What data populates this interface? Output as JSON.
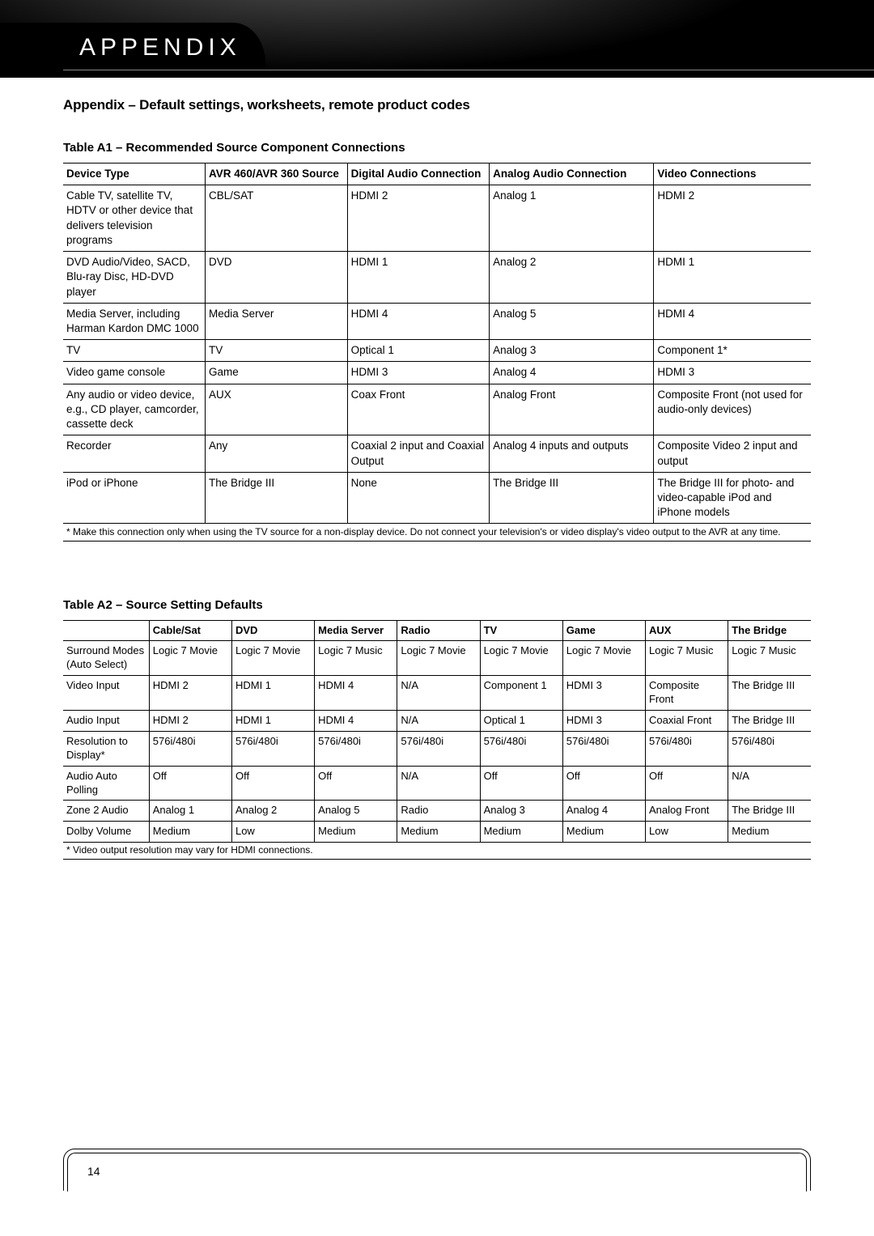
{
  "header": {
    "label": "APPENDIX"
  },
  "section_title": "Appendix – Default settings, worksheets, remote product codes",
  "tableA1": {
    "caption": "Table A1 – Recommended Source Component Connections",
    "columns": [
      "Device Type",
      "AVR 460/AVR 360 Source",
      "Digital Audio Connection",
      "Analog Audio Connection",
      "Video Connections"
    ],
    "rows": [
      [
        "Cable TV, satellite TV, HDTV or other device that delivers television programs",
        "CBL/SAT",
        "HDMI 2",
        "Analog 1",
        "HDMI 2"
      ],
      [
        "DVD Audio/Video, SACD, Blu-ray Disc, HD-DVD player",
        "DVD",
        "HDMI 1",
        "Analog 2",
        "HDMI 1"
      ],
      [
        "Media Server, including Harman Kardon DMC 1000",
        "Media Server",
        "HDMI 4",
        "Analog 5",
        "HDMI 4"
      ],
      [
        "TV",
        "TV",
        "Optical 1",
        "Analog 3",
        "Component 1*"
      ],
      [
        "Video game console",
        "Game",
        "HDMI 3",
        "Analog 4",
        "HDMI 3"
      ],
      [
        "Any audio or video device, e.g., CD player, camcorder, cassette deck",
        "AUX",
        "Coax Front",
        "Analog Front",
        "Composite Front (not used for audio-only devices)"
      ],
      [
        "Recorder",
        "Any",
        "Coaxial 2 input and Coaxial Output",
        "Analog 4 inputs and outputs",
        "Composite Video 2 input and output"
      ],
      [
        "iPod or iPhone",
        "The Bridge III",
        "None",
        "The Bridge III",
        "The Bridge III for photo- and video-capable iPod and iPhone models"
      ]
    ],
    "footnote": "*  Make this connection only when using the TV source for a non-display device. Do not connect your television's or video display's video output to the AVR at any time."
  },
  "tableA2": {
    "caption": "Table A2 – Source Setting Defaults",
    "columns": [
      "",
      "Cable/Sat",
      "DVD",
      "Media Server",
      "Radio",
      "TV",
      "Game",
      "AUX",
      "The Bridge"
    ],
    "rows": [
      [
        "Surround Modes (Auto Select)",
        "Logic 7 Movie",
        "Logic 7 Movie",
        "Logic 7 Music",
        "Logic 7 Movie",
        "Logic 7 Movie",
        "Logic 7 Movie",
        "Logic 7 Music",
        "Logic 7 Music"
      ],
      [
        "Video Input",
        "HDMI 2",
        "HDMI 1",
        "HDMI 4",
        "N/A",
        "Component 1",
        "HDMI 3",
        "Composite Front",
        "The Bridge III"
      ],
      [
        "Audio Input",
        "HDMI 2",
        "HDMI 1",
        "HDMI 4",
        "N/A",
        "Optical 1",
        "HDMI 3",
        "Coaxial Front",
        "The Bridge III"
      ],
      [
        "Resolution to Display*",
        "576i/480i",
        "576i/480i",
        "576i/480i",
        "576i/480i",
        "576i/480i",
        "576i/480i",
        "576i/480i",
        "576i/480i"
      ],
      [
        "Audio Auto Polling",
        "Off",
        "Off",
        "Off",
        "N/A",
        "Off",
        "Off",
        "Off",
        "N/A"
      ],
      [
        "Zone 2 Audio",
        "Analog 1",
        "Analog 2",
        "Analog 5",
        "Radio",
        "Analog 3",
        "Analog 4",
        "Analog Front",
        "The Bridge III"
      ],
      [
        "Dolby Volume",
        "Medium",
        "Low",
        "Medium",
        "Medium",
        "Medium",
        "Medium",
        "Low",
        "Medium"
      ]
    ],
    "footnote": "*  Video output resolution may vary for HDMI connections."
  },
  "page_number": "14"
}
